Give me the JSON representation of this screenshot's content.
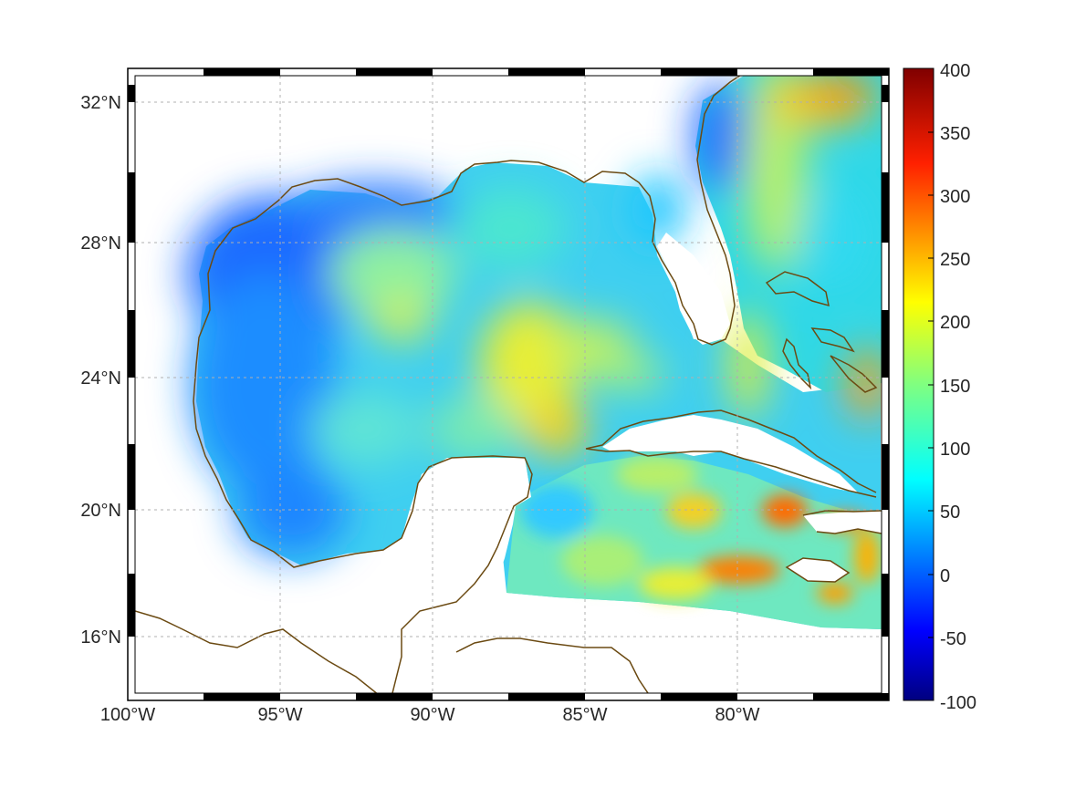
{
  "map": {
    "lon_range": [
      -100,
      -75
    ],
    "lat_range": [
      14.2,
      32.9
    ],
    "lon_ticks": [
      {
        "value": -100,
        "label": "100°W"
      },
      {
        "value": -95,
        "label": "95°W"
      },
      {
        "value": -90,
        "label": "90°W"
      },
      {
        "value": -85,
        "label": "85°W"
      },
      {
        "value": -80,
        "label": "80°W"
      }
    ],
    "lat_ticks": [
      {
        "value": 32,
        "label": "32°N"
      },
      {
        "value": 28,
        "label": "28°N"
      },
      {
        "value": 24,
        "label": "24°N"
      },
      {
        "value": 20,
        "label": "20°N"
      },
      {
        "value": 16,
        "label": "16°N"
      }
    ],
    "grid": true,
    "coastline_color": "#6b4a12"
  },
  "colorbar": {
    "min": -100,
    "max": 400,
    "colormap": "jet",
    "tick_labels": [
      "400",
      "350",
      "300",
      "250",
      "200",
      "150",
      "100",
      "50",
      "0",
      "-50",
      "-100"
    ]
  },
  "chart_data": {
    "type": "heatmap",
    "value_range": [
      -100,
      400
    ],
    "grid_on": true,
    "regions": [
      {
        "region": "NW Gulf of Mexico shelf",
        "approx_value": 20
      },
      {
        "region": "Western Gulf",
        "approx_value": 40
      },
      {
        "region": "Central Gulf",
        "approx_value": 120
      },
      {
        "region": "Loop Current / Yucatan Channel",
        "approx_value": 190
      },
      {
        "region": "Florida Straits",
        "approx_value": 160
      },
      {
        "region": "Atlantic east of Florida (Gulf Stream)",
        "approx_value": 210
      },
      {
        "region": "Northeast corner (offshore Carolinas)",
        "approx_value": 270
      },
      {
        "region": "Caribbean south of Cuba",
        "approx_value": 140
      },
      {
        "region": "Cayman / south of Cuba hot spot",
        "approx_value": 280
      },
      {
        "region": "South of Jamaica",
        "approx_value": 260
      },
      {
        "region": "Nearshore US Atlantic coast",
        "approx_value": 10
      }
    ]
  }
}
